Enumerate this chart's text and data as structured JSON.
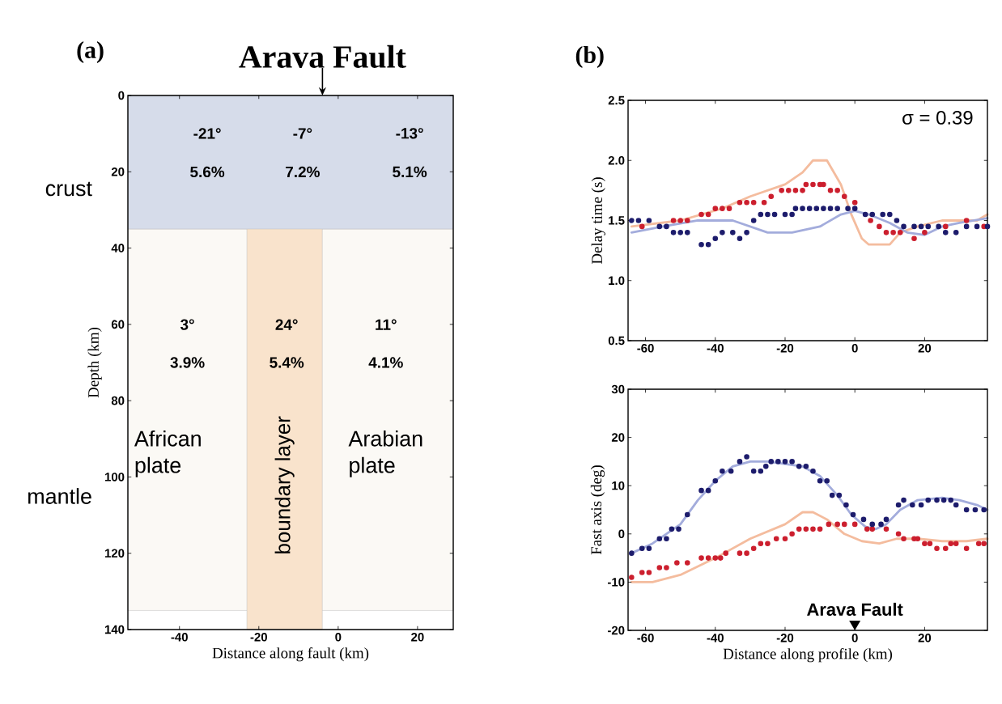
{
  "chart_data": [
    {
      "type": "scatter",
      "title": "(a)",
      "xlabel": "Distance along fault (km)",
      "ylabel": "Depth (km)",
      "xlim": [
        -53,
        29
      ],
      "ylim": [
        140,
        0
      ],
      "xticks": [
        -40,
        -20,
        0,
        20
      ],
      "yticks": [
        0,
        20,
        40,
        60,
        80,
        100,
        120,
        140
      ],
      "bands": [
        {
          "axis": "y",
          "from": 35,
          "to": 135,
          "label": "mantle",
          "color": "#fbf9f5"
        },
        {
          "axis": "x",
          "from": -23,
          "to": -4,
          "label": "boundary layer",
          "color": "#f9e3cc"
        },
        {
          "axis": "y",
          "from": 0,
          "to": 35,
          "label": "crust",
          "color": "#d6dcea"
        }
      ],
      "annotations": [
        "Arava Fault",
        "-21°",
        "5.6%",
        "-7°",
        "7.2%",
        "-13°",
        "5.1%",
        "3°",
        "3.9%",
        "24°",
        "5.4%",
        "11°",
        "4.1%",
        "African plate",
        "Arabian plate"
      ]
    },
    {
      "type": "scatter",
      "title": "(b)",
      "ylabel": "Delay time (s)",
      "xlim": [
        -65,
        38
      ],
      "ylim": [
        0.5,
        2.5
      ],
      "xticks": [
        -60,
        -40,
        -20,
        0,
        20
      ],
      "yticks": [
        {
          "value": 0.5,
          "label": "0.5"
        },
        {
          "value": 1.0,
          "label": "1.0"
        },
        {
          "value": 1.5,
          "label": "1.5"
        },
        {
          "value": 2.0,
          "label": "2.0"
        },
        {
          "value": 2.5,
          "label": "2.5"
        }
      ],
      "annotations": [
        "σ = 0.39"
      ],
      "series": [
        {
          "type": "line",
          "color": "#f4bc9e",
          "x": [
            -64,
            -50,
            -38,
            -30,
            -20,
            -15,
            -12,
            -10,
            -8,
            -4,
            -1,
            2,
            4,
            10,
            13,
            18,
            25,
            35,
            38
          ],
          "values": [
            1.45,
            1.5,
            1.6,
            1.7,
            1.8,
            1.9,
            2.0,
            2.0,
            2.0,
            1.8,
            1.55,
            1.35,
            1.3,
            1.3,
            1.4,
            1.45,
            1.5,
            1.5,
            1.55
          ]
        },
        {
          "type": "line",
          "color": "#a3acdc",
          "x": [
            -64,
            -55,
            -45,
            -35,
            -30,
            -25,
            -18,
            -10,
            -4,
            0,
            4,
            10,
            15,
            20,
            25,
            30,
            38
          ],
          "values": [
            1.4,
            1.45,
            1.5,
            1.5,
            1.45,
            1.4,
            1.4,
            1.45,
            1.55,
            1.58,
            1.55,
            1.48,
            1.4,
            1.38,
            1.45,
            1.48,
            1.52
          ]
        },
        {
          "marker": "circle",
          "color": "#cc1f2e",
          "x": [
            -61,
            -52,
            -50,
            -48,
            -44,
            -42,
            -40,
            -38,
            -36,
            -33,
            -31,
            -29,
            -26,
            -24,
            -21,
            -19,
            -17,
            -15,
            -14,
            -12,
            -10,
            -9,
            -7,
            -5,
            -3,
            0,
            4.5,
            7,
            9,
            11,
            13,
            17,
            20,
            26,
            32,
            37
          ],
          "values": [
            1.45,
            1.5,
            1.5,
            1.5,
            1.55,
            1.55,
            1.6,
            1.6,
            1.6,
            1.65,
            1.65,
            1.65,
            1.65,
            1.7,
            1.75,
            1.75,
            1.75,
            1.75,
            1.8,
            1.8,
            1.8,
            1.8,
            1.75,
            1.75,
            1.7,
            1.65,
            1.5,
            1.45,
            1.4,
            1.4,
            1.4,
            1.35,
            1.4,
            1.45,
            1.5,
            1.45
          ]
        },
        {
          "marker": "circle",
          "color": "#1d1c6c",
          "x": [
            -64,
            -62,
            -59,
            -56,
            -54,
            -52,
            -50,
            -48,
            -44,
            -42,
            -40,
            -38,
            -35,
            -33,
            -31,
            -29,
            -27,
            -25,
            -23,
            -20,
            -18,
            -17,
            -15,
            -13,
            -11,
            -9,
            -7,
            -5,
            -2,
            0,
            3,
            5,
            8,
            10,
            12,
            14,
            17,
            19,
            21,
            24,
            26,
            29,
            32,
            35,
            38
          ],
          "values": [
            1.5,
            1.5,
            1.5,
            1.45,
            1.45,
            1.4,
            1.4,
            1.4,
            1.3,
            1.3,
            1.35,
            1.4,
            1.4,
            1.35,
            1.4,
            1.5,
            1.55,
            1.55,
            1.55,
            1.55,
            1.55,
            1.6,
            1.6,
            1.6,
            1.6,
            1.6,
            1.6,
            1.6,
            1.6,
            1.6,
            1.55,
            1.55,
            1.55,
            1.55,
            1.5,
            1.45,
            1.45,
            1.45,
            1.45,
            1.45,
            1.4,
            1.4,
            1.45,
            1.45,
            1.45
          ]
        }
      ]
    },
    {
      "type": "scatter",
      "xlabel": "Distance along profile (km)",
      "ylabel": "Fast axis (deg)",
      "xlim": [
        -65,
        38
      ],
      "ylim": [
        -20,
        30
      ],
      "xticks": [
        -60,
        -40,
        -20,
        0,
        20
      ],
      "yticks": [
        -20,
        -10,
        0,
        10,
        20,
        30
      ],
      "annotations": [
        "Arava Fault"
      ],
      "series": [
        {
          "type": "line",
          "color": "#f4bc9e",
          "x": [
            -64,
            -58,
            -50,
            -40,
            -30,
            -20,
            -15,
            -12,
            -8,
            -3,
            2,
            7,
            12,
            18,
            25,
            32,
            38
          ],
          "values": [
            -10,
            -10,
            -8.5,
            -5,
            -1,
            2,
            4.5,
            4.5,
            3,
            0,
            -1.5,
            -2,
            -1,
            -1,
            -1.5,
            -1.5,
            -1
          ]
        },
        {
          "type": "line",
          "color": "#a3acdc",
          "x": [
            -64,
            -58,
            -50,
            -45,
            -40,
            -35,
            -30,
            -25,
            -20,
            -15,
            -10,
            -5,
            -1,
            3,
            6,
            9,
            13,
            18,
            25,
            30,
            35,
            38
          ],
          "values": [
            -4,
            -2,
            2,
            7,
            11,
            14,
            15,
            15,
            14.5,
            14,
            12,
            8,
            4,
            1.5,
            1,
            2,
            5,
            7,
            7.5,
            7,
            6,
            5
          ]
        },
        {
          "marker": "circle",
          "color": "#cc1f2e",
          "x": [
            -64,
            -61,
            -59,
            -56,
            -54,
            -51,
            -48,
            -44,
            -42,
            -40,
            -38.5,
            -37,
            -33,
            -31,
            -29,
            -27,
            -25,
            -22.5,
            -20,
            -18,
            -16,
            -14,
            -12,
            -10,
            -7.5,
            -5,
            -3,
            0,
            3.5,
            5,
            9,
            12.5,
            14,
            17,
            18,
            20,
            21.5,
            23.5,
            26,
            27.5,
            29,
            32,
            35.5,
            37
          ],
          "values": [
            -9,
            -8,
            -8,
            -7,
            -7,
            -6,
            -6,
            -5,
            -5,
            -5,
            -5,
            -4,
            -4,
            -4,
            -3,
            -2,
            -2,
            -1,
            -1,
            0,
            1,
            1,
            1,
            1,
            2,
            2,
            2,
            2,
            1,
            1,
            1,
            0,
            -1,
            -1,
            -1,
            -2,
            -2,
            -3,
            -3,
            -2,
            -2,
            -3,
            -2,
            -2
          ]
        },
        {
          "marker": "circle",
          "color": "#1d1c6c",
          "x": [
            -64,
            -61,
            -59,
            -56,
            -54,
            -52.5,
            -50.5,
            -48,
            -44,
            -42,
            -40,
            -38,
            -35.5,
            -33,
            -31,
            -29,
            -27,
            -25.5,
            -24,
            -22,
            -20,
            -18,
            -16,
            -14,
            -12,
            -10,
            -8,
            -6.5,
            -4.5,
            -2.5,
            -0.5,
            2.5,
            5,
            7.5,
            9,
            12.5,
            14,
            16.5,
            19,
            21,
            23.5,
            25.5,
            27.5,
            29,
            32,
            34.5,
            37
          ],
          "values": [
            -4,
            -3,
            -3,
            -1,
            -1,
            1,
            1,
            4,
            9,
            9,
            11,
            13,
            13,
            15,
            16,
            13,
            13,
            14,
            15,
            15,
            15,
            15,
            14,
            14,
            13,
            11,
            11,
            8,
            8,
            6,
            4,
            3,
            2,
            2,
            3,
            6,
            7,
            6,
            6,
            7,
            7,
            7,
            7,
            6,
            5,
            5,
            5
          ]
        }
      ]
    }
  ]
}
